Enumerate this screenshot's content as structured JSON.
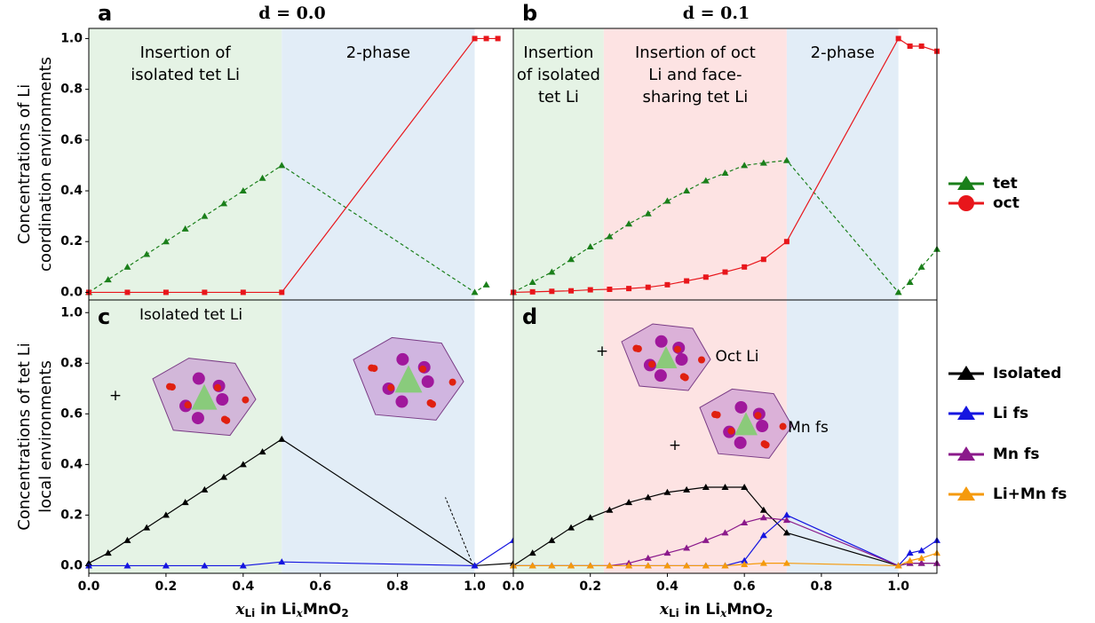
{
  "chart_data": [
    {
      "type": "line",
      "panel": "a",
      "title": "d = 0.0",
      "y_label": [
        "Concentrations of Li",
        "coordination environments"
      ],
      "xlim": [
        0,
        1.1
      ],
      "ylim": [
        -0.03,
        1.04
      ],
      "yticks": [
        {
          "value": 0,
          "label": "0.0"
        },
        {
          "value": 0.2,
          "label": "0.2"
        },
        {
          "value": 0.4,
          "label": "0.4"
        },
        {
          "value": 0.6,
          "label": "0.6"
        },
        {
          "value": 0.8,
          "label": "0.8"
        },
        {
          "value": 1.0,
          "label": "1.0"
        }
      ],
      "regions": [
        {
          "x0": 0,
          "x1": 0.5,
          "color": "#e5f3e5",
          "label": [
            "Insertion of",
            "isolated tet Li"
          ]
        },
        {
          "x0": 0.5,
          "x1": 1.0,
          "color": "#e2edf7",
          "label": [
            "2-phase"
          ]
        }
      ],
      "series": [
        {
          "name": "tet",
          "color": "#1a7f1a",
          "marker": "triangle",
          "dash": true,
          "x": [
            0,
            0.05,
            0.1,
            0.15,
            0.2,
            0.25,
            0.3,
            0.35,
            0.4,
            0.45,
            0.5,
            1.0,
            1.03
          ],
          "values": [
            0,
            0.05,
            0.1,
            0.15,
            0.2,
            0.25,
            0.3,
            0.35,
            0.4,
            0.45,
            0.5,
            0,
            0.03
          ]
        },
        {
          "name": "oct",
          "color": "#e8161b",
          "marker": "square",
          "dash": false,
          "x": [
            0,
            0.1,
            0.2,
            0.3,
            0.4,
            0.5,
            1.0,
            1.03,
            1.06
          ],
          "values": [
            0,
            0,
            0,
            0,
            0,
            0,
            1.0,
            1.0,
            1.0
          ]
        }
      ]
    },
    {
      "type": "line",
      "panel": "b",
      "title": "d = 0.1",
      "legend": "right",
      "xlim": [
        0,
        1.1
      ],
      "ylim": [
        -0.03,
        1.04
      ],
      "regions": [
        {
          "x0": 0,
          "x1": 0.235,
          "color": "#e5f3e5",
          "label": [
            "Insertion",
            "of isolated",
            "tet Li"
          ]
        },
        {
          "x0": 0.235,
          "x1": 0.71,
          "color": "#fde3e3",
          "label": [
            "Insertion of oct",
            "Li and face-",
            "sharing tet Li"
          ]
        },
        {
          "x0": 0.71,
          "x1": 1.0,
          "color": "#e2edf7",
          "label": [
            "2-phase"
          ]
        }
      ],
      "series": [
        {
          "name": "tet",
          "color": "#1a7f1a",
          "marker": "triangle",
          "dash": true,
          "x": [
            0,
            0.05,
            0.1,
            0.15,
            0.2,
            0.25,
            0.3,
            0.35,
            0.4,
            0.45,
            0.5,
            0.55,
            0.6,
            0.65,
            0.71,
            1.0,
            1.03,
            1.06,
            1.1
          ],
          "values": [
            0,
            0.04,
            0.08,
            0.13,
            0.18,
            0.22,
            0.27,
            0.31,
            0.36,
            0.4,
            0.44,
            0.47,
            0.5,
            0.51,
            0.52,
            0,
            0.04,
            0.1,
            0.17
          ]
        },
        {
          "name": "oct",
          "color": "#e8161b",
          "marker": "square",
          "dash": false,
          "x": [
            0,
            0.05,
            0.1,
            0.15,
            0.2,
            0.25,
            0.3,
            0.35,
            0.4,
            0.45,
            0.5,
            0.55,
            0.6,
            0.65,
            0.71,
            1.0,
            1.03,
            1.06,
            1.1
          ],
          "values": [
            0,
            0.002,
            0.004,
            0.006,
            0.01,
            0.012,
            0.015,
            0.02,
            0.03,
            0.045,
            0.06,
            0.08,
            0.1,
            0.13,
            0.2,
            1.0,
            0.97,
            0.97,
            0.95
          ]
        }
      ]
    },
    {
      "type": "line",
      "panel": "c",
      "y_label": [
        "Concentrations of tet Li",
        "local environments"
      ],
      "x_label": [
        "x",
        "Li",
        " in Li",
        "x",
        "MnO",
        "2"
      ],
      "annotations": [
        "Isolated tet Li",
        "+"
      ],
      "xlim": [
        0,
        1.1
      ],
      "ylim": [
        -0.03,
        1.05
      ],
      "xticks": [
        {
          "value": 0,
          "label": "0.0"
        },
        {
          "value": 0.2,
          "label": "0.2"
        },
        {
          "value": 0.4,
          "label": "0.4"
        },
        {
          "value": 0.6,
          "label": "0.6"
        },
        {
          "value": 0.8,
          "label": "0.8"
        },
        {
          "value": 1.0,
          "label": "1.0"
        }
      ],
      "yticks": [
        {
          "value": 0,
          "label": "0.0"
        },
        {
          "value": 0.2,
          "label": "0.2"
        },
        {
          "value": 0.4,
          "label": "0.4"
        },
        {
          "value": 0.6,
          "label": "0.6"
        },
        {
          "value": 0.8,
          "label": "0.8"
        },
        {
          "value": 1.0,
          "label": "1.0"
        }
      ],
      "regions": [
        {
          "x0": 0,
          "x1": 0.5,
          "color": "#e5f3e5"
        },
        {
          "x0": 0.5,
          "x1": 1.0,
          "color": "#e2edf7"
        }
      ],
      "series": [
        {
          "name": "Isolated",
          "color": "#000000",
          "marker": "triangle",
          "dash": false,
          "x": [
            0,
            0.05,
            0.1,
            0.15,
            0.2,
            0.25,
            0.3,
            0.35,
            0.4,
            0.45,
            0.5,
            1.0,
            1.1
          ],
          "values": [
            0.01,
            0.05,
            0.1,
            0.15,
            0.2,
            0.25,
            0.3,
            0.35,
            0.4,
            0.45,
            0.5,
            0,
            0.01
          ]
        },
        {
          "name": "Li fs",
          "color": "#1515e0",
          "marker": "triangle",
          "dash": false,
          "x": [
            0,
            0.1,
            0.2,
            0.3,
            0.4,
            0.5,
            1.0,
            1.1
          ],
          "values": [
            0,
            0,
            0,
            0,
            0,
            0.015,
            0,
            0.1
          ]
        }
      ]
    },
    {
      "type": "line",
      "panel": "d",
      "legend": "right",
      "x_label": [
        "x",
        "Li",
        " in Li",
        "x",
        "MnO",
        "2"
      ],
      "annotations": [
        "Oct Li",
        "Mn fs",
        "+",
        "+"
      ],
      "xlim": [
        0,
        1.1
      ],
      "ylim": [
        -0.03,
        1.05
      ],
      "xticks": [
        {
          "value": 0,
          "label": "0.0"
        },
        {
          "value": 0.2,
          "label": "0.2"
        },
        {
          "value": 0.4,
          "label": "0.4"
        },
        {
          "value": 0.6,
          "label": "0.6"
        },
        {
          "value": 0.8,
          "label": "0.8"
        },
        {
          "value": 1.0,
          "label": "1.0"
        }
      ],
      "regions": [
        {
          "x0": 0,
          "x1": 0.235,
          "color": "#e5f3e5"
        },
        {
          "x0": 0.235,
          "x1": 0.71,
          "color": "#fde3e3"
        },
        {
          "x0": 0.71,
          "x1": 1.0,
          "color": "#e2edf7"
        }
      ],
      "series": [
        {
          "name": "Isolated",
          "color": "#000000",
          "marker": "triangle",
          "dash": false,
          "x": [
            0,
            0.05,
            0.1,
            0.15,
            0.2,
            0.25,
            0.3,
            0.35,
            0.4,
            0.45,
            0.5,
            0.55,
            0.6,
            0.65,
            0.71,
            1.0,
            1.03,
            1.06,
            1.1
          ],
          "values": [
            0,
            0.05,
            0.1,
            0.15,
            0.19,
            0.22,
            0.25,
            0.27,
            0.29,
            0.3,
            0.31,
            0.31,
            0.31,
            0.22,
            0.13,
            0,
            0.01,
            0.01,
            0.01
          ]
        },
        {
          "name": "Li fs",
          "color": "#1515e0",
          "marker": "triangle",
          "dash": false,
          "x": [
            0,
            0.05,
            0.1,
            0.15,
            0.2,
            0.25,
            0.3,
            0.35,
            0.4,
            0.45,
            0.5,
            0.55,
            0.6,
            0.65,
            0.71,
            1.0,
            1.03,
            1.06,
            1.1
          ],
          "values": [
            0,
            0,
            0,
            0,
            0,
            0,
            0,
            0,
            0,
            0,
            0,
            0,
            0.02,
            0.12,
            0.2,
            0,
            0.05,
            0.06,
            0.1
          ]
        },
        {
          "name": "Mn fs",
          "color": "#8b1a8b",
          "marker": "triangle",
          "dash": false,
          "x": [
            0,
            0.05,
            0.1,
            0.15,
            0.2,
            0.25,
            0.3,
            0.35,
            0.4,
            0.45,
            0.5,
            0.55,
            0.6,
            0.65,
            0.71,
            1.0,
            1.03,
            1.06,
            1.1
          ],
          "values": [
            0,
            0,
            0,
            0,
            0,
            0,
            0.01,
            0.03,
            0.05,
            0.07,
            0.1,
            0.13,
            0.17,
            0.19,
            0.18,
            0,
            0.01,
            0.01,
            0.01
          ]
        },
        {
          "name": "Li+Mn fs",
          "color": "#f59a0c",
          "marker": "triangle",
          "dash": false,
          "x": [
            0,
            0.05,
            0.1,
            0.15,
            0.2,
            0.25,
            0.3,
            0.35,
            0.4,
            0.45,
            0.5,
            0.55,
            0.6,
            0.65,
            0.71,
            1.0,
            1.03,
            1.06,
            1.1
          ],
          "values": [
            0,
            0,
            0,
            0,
            0,
            0,
            0,
            0,
            0,
            0,
            0,
            0,
            0.005,
            0.01,
            0.01,
            0,
            0.02,
            0.03,
            0.05
          ]
        }
      ]
    }
  ]
}
